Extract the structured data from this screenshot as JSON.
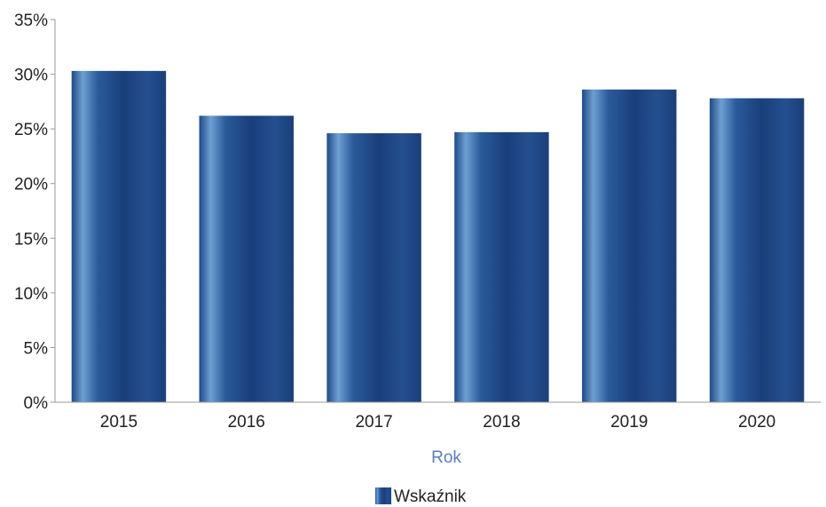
{
  "chart_data": {
    "type": "bar",
    "categories": [
      "2015",
      "2016",
      "2017",
      "2018",
      "2019",
      "2020"
    ],
    "series": [
      {
        "name": "Wskaźnik",
        "values": [
          30.3,
          26.2,
          24.6,
          24.7,
          28.6,
          27.8
        ]
      }
    ],
    "title": "",
    "xlabel": "Rok",
    "ylabel": "",
    "ylim": [
      0,
      35
    ],
    "yticks": [
      0,
      5,
      10,
      15,
      20,
      25,
      30,
      35
    ],
    "ytick_labels": [
      "0%",
      "5%",
      "10%",
      "15%",
      "20%",
      "25%",
      "30%",
      "35%"
    ],
    "grid": false,
    "legend_position": "bottom-center",
    "colors": {
      "bar_dark": "#1a3f7a",
      "bar_mid": "#2d5fa0",
      "bar_light": "#6e9fd2",
      "axis_title": "#5a7fb8",
      "axis_line": "#999999"
    }
  }
}
